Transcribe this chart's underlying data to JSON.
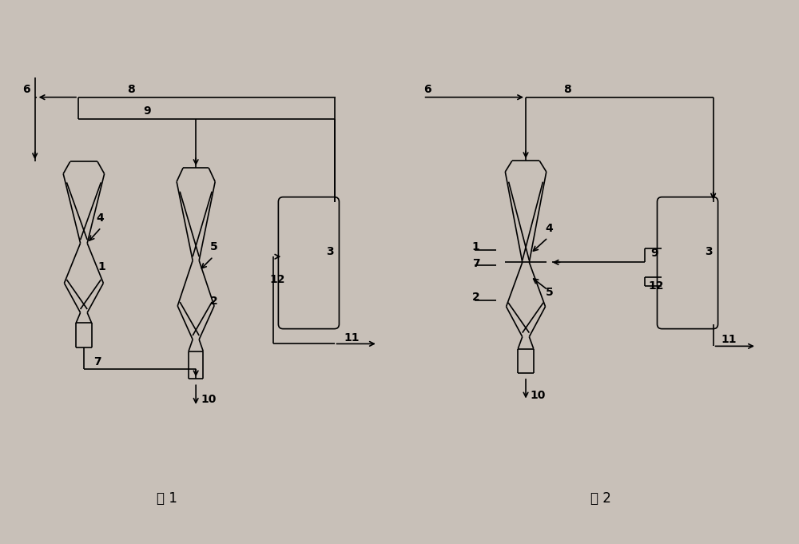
{
  "bg_color": "#c8c0b8",
  "line_color": "#000000",
  "fig_width": 10.0,
  "fig_height": 6.81,
  "title1": "图 1",
  "title2": "图 2",
  "font_size_label": 10,
  "font_size_title": 12
}
